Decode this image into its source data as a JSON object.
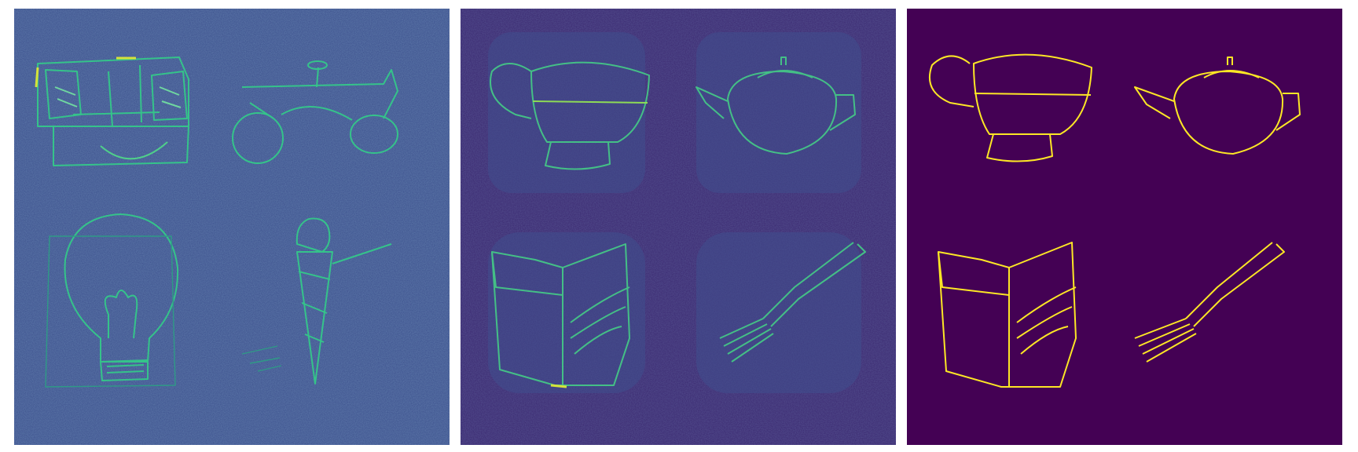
{
  "panels": [
    {
      "id": "noisy-sketch-grid",
      "background": "#3b4f8c",
      "stroke": "#35c38a",
      "sketches": [
        "sofa-sketch",
        "motorcycle-sketch",
        "light-bulb-sketch",
        "ice-cream-sketch"
      ]
    },
    {
      "id": "composite-sketch-grid",
      "background": "#3a2870",
      "stroke": "#44bf86",
      "sketches": [
        "cup-sketch",
        "teapot-sketch",
        "cake-slice-sketch",
        "fork-sketch"
      ]
    },
    {
      "id": "clean-sketch-grid",
      "background": "#440154",
      "stroke": "#fde725",
      "sketches": [
        "cup-sketch",
        "teapot-sketch",
        "cake-slice-sketch",
        "fork-sketch"
      ]
    }
  ],
  "colors": {
    "viridis_dark": "#440154",
    "viridis_blue": "#3b528b",
    "viridis_green": "#35b779",
    "viridis_yellow": "#fde725"
  }
}
